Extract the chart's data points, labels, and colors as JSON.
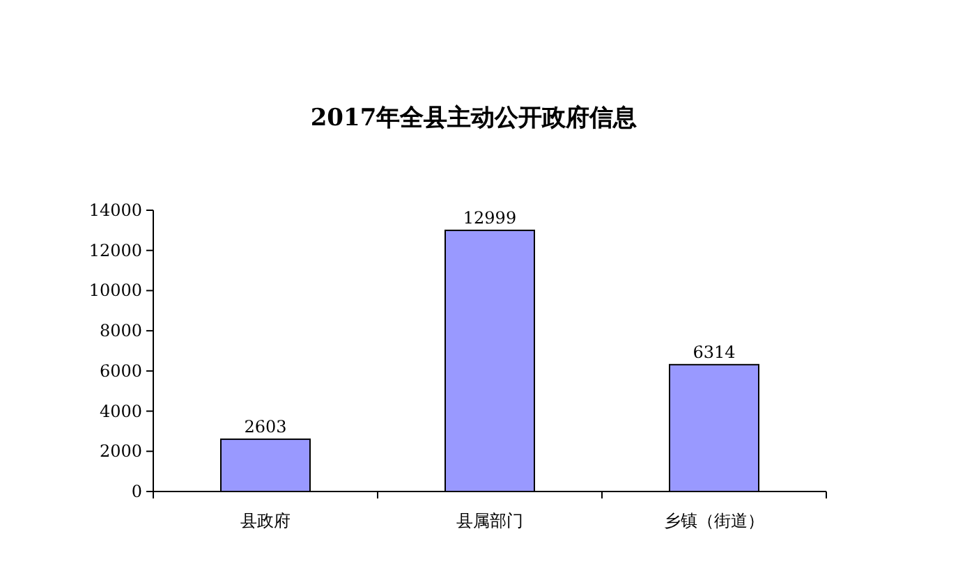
{
  "chart_data": {
    "type": "bar",
    "title": "2017年全县主动公开政府信息",
    "categories": [
      "县政府",
      "县属部门",
      "乡镇（街道）"
    ],
    "values": [
      2603,
      12999,
      6314
    ],
    "color": "#9999ff",
    "ylim": [
      0,
      14000
    ],
    "yticks": [
      0,
      2000,
      4000,
      6000,
      8000,
      10000,
      12000,
      14000
    ],
    "data_labels": true,
    "grid": false
  }
}
